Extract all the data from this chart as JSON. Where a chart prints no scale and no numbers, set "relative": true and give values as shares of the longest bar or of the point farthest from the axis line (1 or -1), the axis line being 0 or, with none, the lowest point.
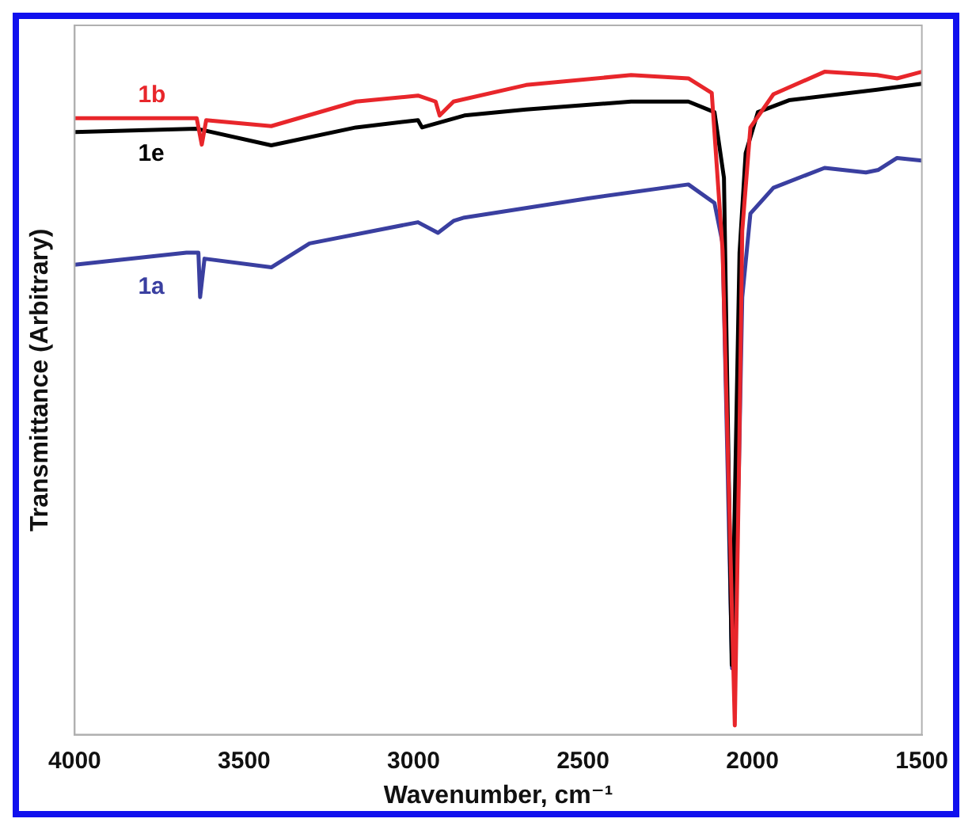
{
  "chart_data": {
    "type": "line",
    "xlabel": "Wavenumber, cm⁻¹",
    "ylabel": "Transmittance (Arbitrary)",
    "relative": true,
    "xlim": [
      4000,
      1500
    ],
    "xticks": [
      4000,
      3500,
      3000,
      2500,
      2000,
      1500
    ],
    "tick_labels": "x",
    "grid": false,
    "legend": false,
    "marker": "none",
    "line_style": "solid",
    "series": [
      {
        "name": "1b",
        "color": "#e8262b",
        "x": [
          4000,
          3640,
          3625,
          3612,
          3420,
          3170,
          2987,
          2935,
          2923,
          2882,
          2668,
          2358,
          2189,
          2120,
          2088,
          2065,
          2052,
          2040,
          2030,
          2006,
          1938,
          1787,
          1632,
          1573,
          1500
        ],
        "values": [
          0.93,
          0.93,
          0.89,
          0.927,
          0.918,
          0.955,
          0.964,
          0.955,
          0.934,
          0.955,
          0.98,
          0.995,
          0.99,
          0.968,
          0.73,
          0.28,
          0.014,
          0.39,
          0.76,
          0.916,
          0.966,
          1.0,
          0.995,
          0.99,
          1.0
        ]
      },
      {
        "name": "1e",
        "color": "#000000",
        "x": [
          4000,
          3640,
          3420,
          3170,
          2987,
          2975,
          2850,
          2668,
          2358,
          2189,
          2112,
          2084,
          2061,
          2038,
          2020,
          1984,
          1892,
          1632,
          1500
        ],
        "values": [
          0.909,
          0.914,
          0.889,
          0.916,
          0.927,
          0.916,
          0.934,
          0.943,
          0.955,
          0.955,
          0.939,
          0.84,
          0.105,
          0.727,
          0.877,
          0.939,
          0.957,
          0.973,
          0.982
        ]
      },
      {
        "name": "1a",
        "color": "#3a3fa0",
        "x": [
          4000,
          3670,
          3635,
          3630,
          3617,
          3420,
          3307,
          2987,
          2928,
          2882,
          2850,
          2485,
          2189,
          2112,
          2088,
          2060,
          2040,
          2030,
          2006,
          1938,
          1787,
          1665,
          1628,
          1573,
          1500
        ],
        "values": [
          0.709,
          0.727,
          0.727,
          0.66,
          0.718,
          0.705,
          0.741,
          0.773,
          0.757,
          0.775,
          0.78,
          0.809,
          0.83,
          0.802,
          0.741,
          0.1,
          0.4,
          0.66,
          0.786,
          0.825,
          0.855,
          0.848,
          0.852,
          0.87,
          0.866
        ]
      }
    ]
  }
}
